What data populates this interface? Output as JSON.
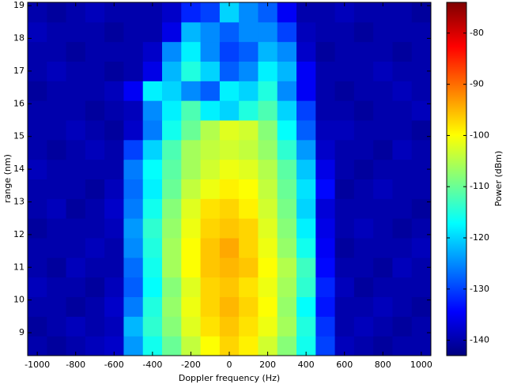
{
  "chart_data": {
    "type": "heatmap",
    "xlabel": "Doppler frequency (Hz)",
    "ylabel": "range (nm)",
    "colormap": "jet",
    "xlim": [
      -1050,
      1050
    ],
    "ylim": [
      8.3,
      19.1
    ],
    "xticks": [
      -1000,
      -800,
      -600,
      -400,
      -200,
      0,
      200,
      400,
      600,
      800,
      1000
    ],
    "yticks": [
      9,
      10,
      11,
      12,
      13,
      14,
      15,
      16,
      17,
      18,
      19
    ],
    "xbins": [
      -1050,
      -950,
      -850,
      -750,
      -650,
      -550,
      -450,
      -350,
      -250,
      -150,
      -50,
      50,
      150,
      250,
      350,
      450,
      550,
      650,
      750,
      850,
      950,
      1050
    ],
    "ybins": [
      8.3,
      8.9,
      9.5,
      10.1,
      10.7,
      11.3,
      11.9,
      12.5,
      13.1,
      13.7,
      14.3,
      14.9,
      15.5,
      16.1,
      16.7,
      17.3,
      17.9,
      18.5,
      19.1
    ],
    "z": [
      [
        -140,
        -141,
        -140,
        -139,
        -138,
        -124,
        -116,
        -110,
        -104,
        -100,
        -97,
        -99,
        -103,
        -108,
        -116,
        -130,
        -139,
        -140,
        -141,
        -140,
        -140
      ],
      [
        -141,
        -140,
        -139,
        -140,
        -139,
        -122,
        -114,
        -108,
        -102,
        -98,
        -96,
        -98,
        -101,
        -106,
        -115,
        -131,
        -140,
        -139,
        -140,
        -141,
        -140
      ],
      [
        -140,
        -140,
        -141,
        -140,
        -138,
        -126,
        -115,
        -107,
        -101,
        -97,
        -95,
        -97,
        -100,
        -107,
        -117,
        -133,
        -140,
        -140,
        -139,
        -140,
        -141
      ],
      [
        -139,
        -140,
        -140,
        -141,
        -139,
        -128,
        -117,
        -108,
        -102,
        -97,
        -96,
        -98,
        -101,
        -106,
        -114,
        -132,
        -139,
        -141,
        -140,
        -140,
        -140
      ],
      [
        -140,
        -141,
        -139,
        -140,
        -140,
        -127,
        -116,
        -106,
        -100,
        -96,
        -95,
        -96,
        -100,
        -105,
        -113,
        -134,
        -140,
        -140,
        -141,
        -139,
        -140
      ],
      [
        -140,
        -140,
        -140,
        -139,
        -140,
        -125,
        -115,
        -106,
        -100,
        -96,
        -94,
        -97,
        -101,
        -107,
        -116,
        -135,
        -141,
        -140,
        -140,
        -140,
        -139
      ],
      [
        -141,
        -140,
        -140,
        -140,
        -139,
        -124,
        -114,
        -107,
        -101,
        -97,
        -96,
        -97,
        -102,
        -108,
        -118,
        -136,
        -140,
        -139,
        -140,
        -141,
        -140
      ],
      [
        -140,
        -139,
        -141,
        -140,
        -138,
        -126,
        -116,
        -108,
        -102,
        -98,
        -97,
        -99,
        -103,
        -109,
        -120,
        -137,
        -140,
        -140,
        -140,
        -140,
        -141
      ],
      [
        -140,
        -140,
        -140,
        -141,
        -139,
        -127,
        -118,
        -110,
        -104,
        -101,
        -99,
        -100,
        -104,
        -110,
        -119,
        -134,
        -141,
        -140,
        -139,
        -140,
        -140
      ],
      [
        -139,
        -140,
        -140,
        -140,
        -140,
        -126,
        -117,
        -111,
        -106,
        -103,
        -101,
        -102,
        -105,
        -111,
        -121,
        -136,
        -140,
        -141,
        -140,
        -140,
        -140
      ],
      [
        -140,
        -141,
        -140,
        -139,
        -140,
        -130,
        -120,
        -112,
        -106,
        -104,
        -103,
        -104,
        -107,
        -114,
        -124,
        -138,
        -140,
        -140,
        -141,
        -139,
        -140
      ],
      [
        -140,
        -140,
        -139,
        -140,
        -141,
        -138,
        -126,
        -116,
        -110,
        -105,
        -102,
        -103,
        -108,
        -117,
        -128,
        -139,
        -139,
        -140,
        -140,
        -140,
        -141
      ],
      [
        -140,
        -140,
        -140,
        -141,
        -140,
        -139,
        -125,
        -118,
        -112,
        -118,
        -120,
        -115,
        -112,
        -120,
        -130,
        -140,
        -140,
        -141,
        -140,
        -140,
        -139
      ],
      [
        -141,
        -140,
        -140,
        -140,
        -139,
        -135,
        -118,
        -120,
        -125,
        -128,
        -118,
        -120,
        -115,
        -125,
        -135,
        -140,
        -141,
        -140,
        -140,
        -139,
        -140
      ],
      [
        -140,
        -139,
        -140,
        -140,
        -141,
        -140,
        -136,
        -122,
        -115,
        -120,
        -128,
        -125,
        -118,
        -122,
        -135,
        -140,
        -140,
        -140,
        -139,
        -140,
        -140
      ],
      [
        -140,
        -140,
        -141,
        -140,
        -140,
        -140,
        -138,
        -125,
        -118,
        -125,
        -130,
        -128,
        -122,
        -125,
        -138,
        -141,
        -140,
        -140,
        -140,
        -141,
        -140
      ],
      [
        -139,
        -140,
        -140,
        -140,
        -141,
        -140,
        -140,
        -136,
        -122,
        -125,
        -128,
        -125,
        -125,
        -130,
        -139,
        -140,
        -140,
        -141,
        -140,
        -140,
        -140
      ],
      [
        -140,
        -141,
        -140,
        -139,
        -140,
        -140,
        -140,
        -138,
        -132,
        -130,
        -120,
        -125,
        -128,
        -135,
        -140,
        -140,
        -139,
        -140,
        -140,
        -140,
        -141
      ]
    ],
    "colorbar": {
      "label": "Power (dBm)",
      "lim": [
        -143,
        -74
      ],
      "ticks": [
        -140,
        -130,
        -120,
        -110,
        -100,
        -90,
        -80
      ]
    }
  }
}
